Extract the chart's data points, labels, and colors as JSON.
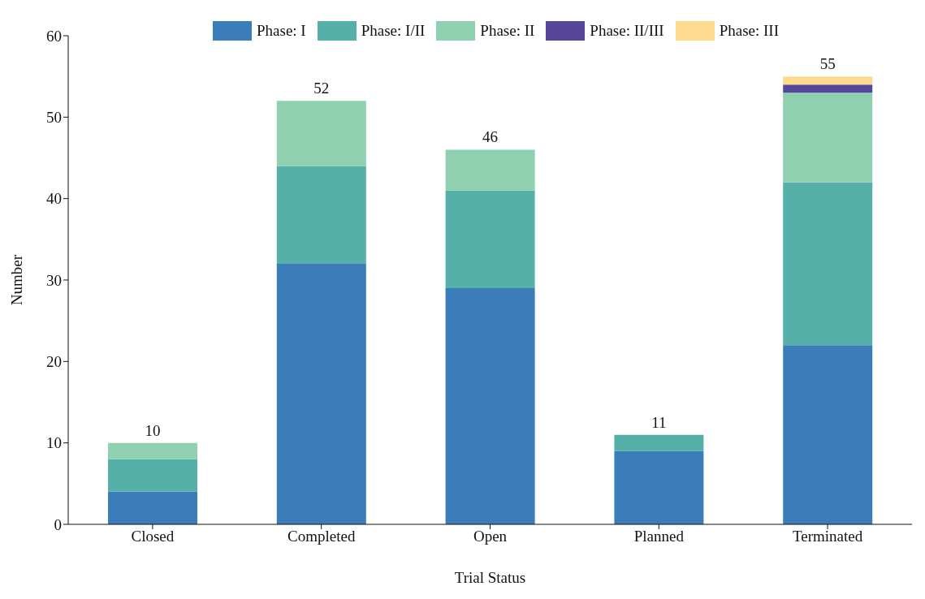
{
  "chart_data": {
    "type": "bar",
    "stacked": true,
    "xlabel": "Trial Status",
    "ylabel": "Number",
    "categories": [
      "Closed",
      "Completed",
      "Open",
      "Planned",
      "Terminated"
    ],
    "series": [
      {
        "name": "Phase: I",
        "color": "#3a7db8",
        "values": [
          4,
          32,
          29,
          9,
          22
        ]
      },
      {
        "name": "Phase: I/II",
        "color": "#55b0aa",
        "values": [
          4,
          12,
          12,
          2,
          20
        ]
      },
      {
        "name": "Phase: II",
        "color": "#8fd0b0",
        "values": [
          2,
          8,
          5,
          0,
          11
        ]
      },
      {
        "name": "Phase: II/III",
        "color": "#57479a",
        "values": [
          0,
          0,
          0,
          0,
          1
        ]
      },
      {
        "name": "Phase: III",
        "color": "#fed98e",
        "values": [
          0,
          0,
          0,
          0,
          1
        ]
      }
    ],
    "totals": [
      "10",
      "52",
      "46",
      "11",
      "55"
    ],
    "ylim": [
      0,
      60
    ],
    "yticks": [
      0,
      10,
      20,
      30,
      40,
      50,
      60
    ],
    "grid": false,
    "legend": "top"
  }
}
